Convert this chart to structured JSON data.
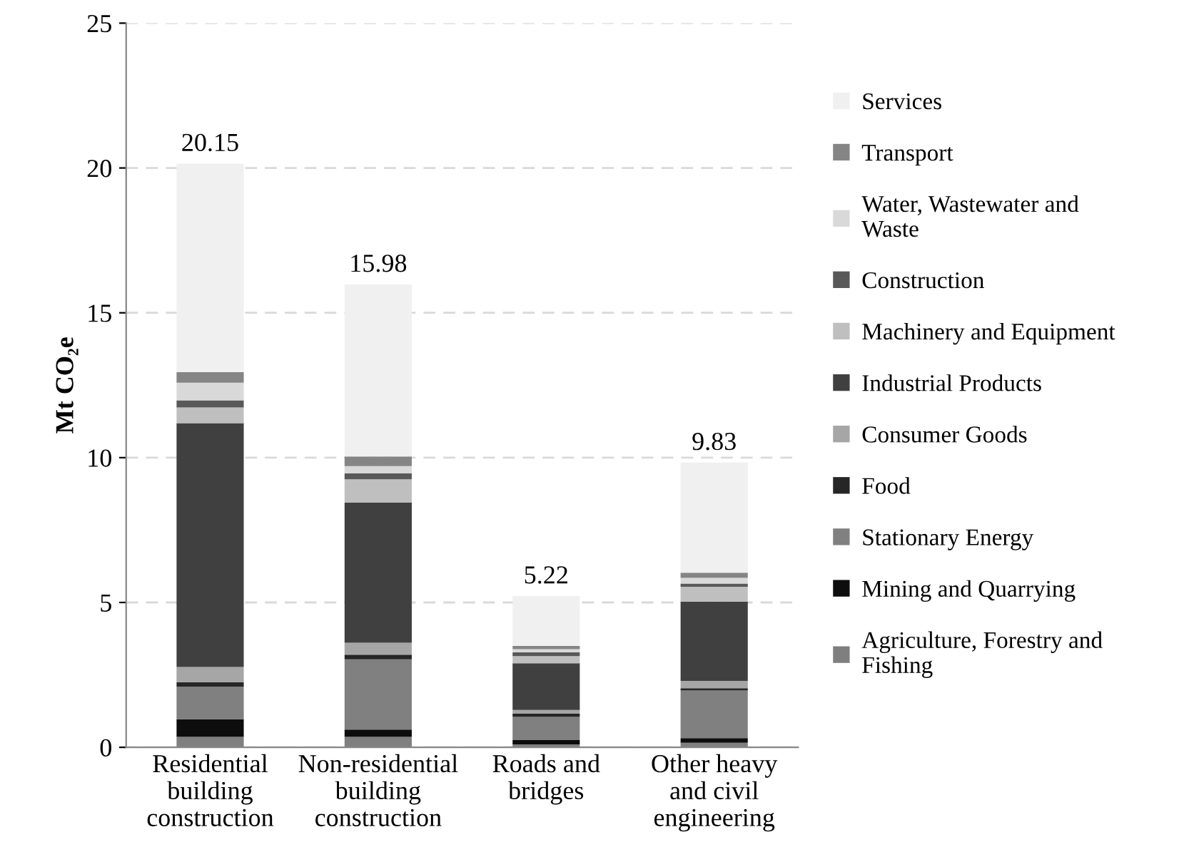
{
  "chart_data": {
    "type": "bar",
    "stacked": true,
    "ylabel": "Mt CO₂e",
    "categories": [
      "Residential\nbuilding\nconstruction",
      "Non-residential\nbuilding\nconstruction",
      "Roads and\nbridges",
      "Other heavy\nand civil\nengineering"
    ],
    "series": [
      {
        "name": "Agriculture, Forestry and\nFishing",
        "color": "#7f7f7f",
        "values": [
          0.36,
          0.36,
          0.1,
          0.16
        ]
      },
      {
        "name": "Mining and Quarrying",
        "color": "#0d0d0d",
        "values": [
          0.61,
          0.25,
          0.16,
          0.16
        ]
      },
      {
        "name": "Stationary Energy",
        "color": "#808080",
        "values": [
          1.12,
          2.43,
          0.79,
          1.64
        ]
      },
      {
        "name": "Food",
        "color": "#262626",
        "values": [
          0.16,
          0.16,
          0.11,
          0.08
        ]
      },
      {
        "name": "Consumer Goods",
        "color": "#a6a6a6",
        "values": [
          0.52,
          0.41,
          0.13,
          0.25
        ]
      },
      {
        "name": "Industrial Products",
        "color": "#404040",
        "values": [
          8.42,
          4.84,
          1.61,
          2.74
        ]
      },
      {
        "name": "Machinery and Equipment",
        "color": "#bfbfbf",
        "values": [
          0.54,
          0.8,
          0.25,
          0.51
        ]
      },
      {
        "name": "Construction",
        "color": "#595959",
        "values": [
          0.25,
          0.21,
          0.13,
          0.11
        ]
      },
      {
        "name": "Water, Wastewater and\nWaste",
        "color": "#d9d9d9",
        "values": [
          0.61,
          0.25,
          0.11,
          0.2
        ]
      },
      {
        "name": "Transport",
        "color": "#858585",
        "values": [
          0.36,
          0.33,
          0.11,
          0.18
        ]
      },
      {
        "name": "Services",
        "color": "#f0f0f0",
        "values": [
          7.2,
          5.94,
          1.72,
          3.8
        ]
      }
    ],
    "totals": [
      "20.15",
      "15.98",
      "5.22",
      "9.83"
    ],
    "ylim": [
      0,
      25
    ],
    "yticks": [
      0,
      5,
      10,
      15,
      20,
      25
    ],
    "grid": "y",
    "legend": "right"
  }
}
